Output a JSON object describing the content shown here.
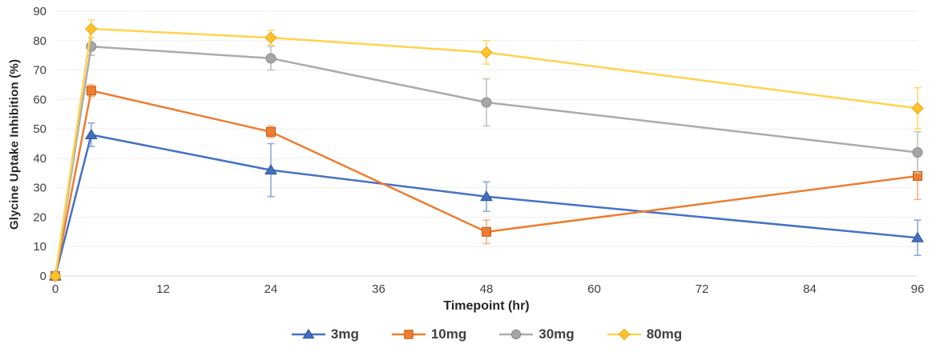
{
  "chart_data": {
    "type": "line",
    "title": "",
    "xlabel": "Timepoint (hr)",
    "ylabel": "Glycine Uptake Inhibition (%)",
    "x": [
      0,
      4,
      24,
      48,
      96
    ],
    "x_ticks": [
      0,
      12,
      24,
      36,
      48,
      60,
      72,
      84,
      96
    ],
    "y_ticks": [
      0,
      10,
      20,
      30,
      40,
      50,
      60,
      70,
      80,
      90
    ],
    "xlim": [
      0,
      96
    ],
    "ylim": [
      0,
      90
    ],
    "grid": "horizontal-only",
    "gridline_color": "#EFEFEF",
    "axis_line_color": "#D9D9D9",
    "legend_position": "bottom",
    "error_bars": true,
    "series": [
      {
        "name": "3mg",
        "marker": "triangle",
        "color": "#4472C4",
        "marker_fill": "#4370BE",
        "marker_stroke": "#2F5597",
        "error_color": "#8EA9DB",
        "values": [
          0,
          48,
          36,
          27,
          13
        ],
        "errors": [
          0,
          4,
          9,
          5,
          6
        ]
      },
      {
        "name": "10mg",
        "marker": "square",
        "color": "#ED7D31",
        "marker_fill": "#ED7D31",
        "marker_stroke": "#C55A11",
        "error_color": "#F4B183",
        "values": [
          0,
          63,
          49,
          15,
          34
        ],
        "errors": [
          0,
          2,
          2,
          4,
          8
        ]
      },
      {
        "name": "30mg",
        "marker": "circle",
        "color": "#ABABAB",
        "marker_fill": "#A6A6A6",
        "marker_stroke": "#8C8C8C",
        "error_color": "#C3C3C3",
        "values": [
          0,
          78,
          74,
          59,
          42
        ],
        "errors": [
          0,
          3,
          4,
          8,
          7
        ]
      },
      {
        "name": "80mg",
        "marker": "diamond",
        "color": "#FFD34F",
        "marker_fill": "#FFC324",
        "marker_stroke": "#E8A62C",
        "error_color": "#FFD966",
        "values": [
          0,
          84,
          81,
          76,
          57
        ],
        "errors": [
          0,
          3,
          2.5,
          4,
          7
        ]
      }
    ]
  }
}
